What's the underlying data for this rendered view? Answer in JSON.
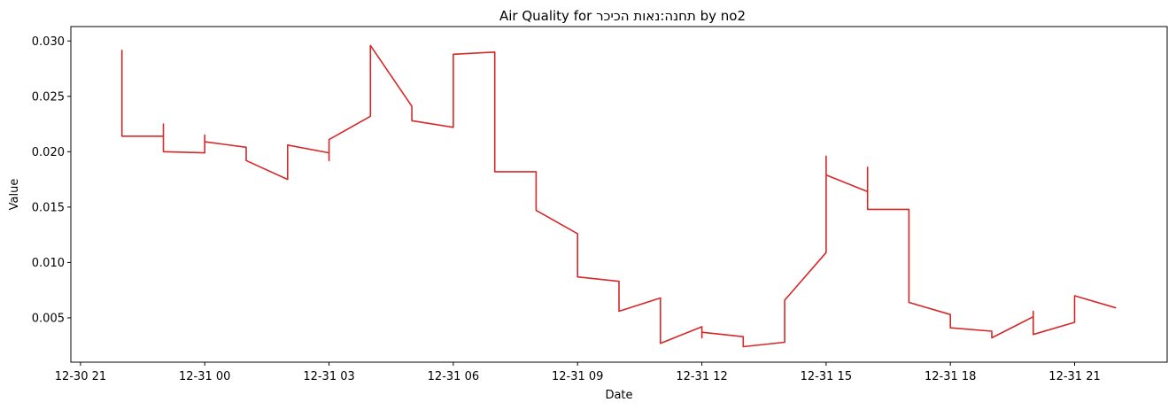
{
  "chart_data": {
    "type": "line",
    "title": "Air Quality for תחנה:נאות הכיכר by no2",
    "xlabel": "Date",
    "ylabel": "Value",
    "xlim": [
      "2023-12-30 20:46",
      "2023-12-31 23:14"
    ],
    "ylim": [
      0.001,
      0.0313
    ],
    "x_ticks": [
      "2023-12-30 21:00",
      "2023-12-31 00:00",
      "2023-12-31 03:00",
      "2023-12-31 06:00",
      "2023-12-31 09:00",
      "2023-12-31 12:00",
      "2023-12-31 15:00",
      "2023-12-31 18:00",
      "2023-12-31 21:00"
    ],
    "x_tick_labels": [
      "12-30 21",
      "12-31 00",
      "12-31 03",
      "12-31 06",
      "12-31 09",
      "12-31 12",
      "12-31 15",
      "12-31 18",
      "12-31 21"
    ],
    "y_ticks": [
      0.005,
      0.01,
      0.015,
      0.02,
      0.025,
      0.03
    ],
    "y_tick_labels": [
      "0.005",
      "0.010",
      "0.015",
      "0.020",
      "0.025",
      "0.030"
    ],
    "grid": false,
    "color": "#d62728",
    "series": [
      {
        "x": [
          "2023-12-30 22:00",
          "2023-12-30 22:00",
          "2023-12-30 23:00",
          "2023-12-30 23:00",
          "2023-12-30 23:00",
          "2023-12-31 00:00",
          "2023-12-31 00:00",
          "2023-12-31 00:00",
          "2023-12-31 01:00",
          "2023-12-31 01:00",
          "2023-12-31 02:00",
          "2023-12-31 02:00",
          "2023-12-31 03:00",
          "2023-12-31 03:00",
          "2023-12-31 03:00",
          "2023-12-31 04:00",
          "2023-12-31 04:00",
          "2023-12-31 05:00",
          "2023-12-31 05:00",
          "2023-12-31 05:00",
          "2023-12-31 06:00",
          "2023-12-31 06:00",
          "2023-12-31 07:00",
          "2023-12-31 07:00",
          "2023-12-31 08:00",
          "2023-12-31 08:00",
          "2023-12-31 09:00",
          "2023-12-31 09:00",
          "2023-12-31 10:00",
          "2023-12-31 10:00",
          "2023-12-31 11:00",
          "2023-12-31 11:00",
          "2023-12-31 12:00",
          "2023-12-31 12:00",
          "2023-12-31 12:00",
          "2023-12-31 13:00",
          "2023-12-31 13:00",
          "2023-12-31 14:00",
          "2023-12-31 14:00",
          "2023-12-31 15:00",
          "2023-12-31 15:00",
          "2023-12-31 15:00",
          "2023-12-31 16:00",
          "2023-12-31 16:00",
          "2023-12-31 16:00",
          "2023-12-31 17:00",
          "2023-12-31 17:00",
          "2023-12-31 18:00",
          "2023-12-31 18:00",
          "2023-12-31 19:00",
          "2023-12-31 19:00",
          "2023-12-31 20:00",
          "2023-12-31 20:00",
          "2023-12-31 20:00",
          "2023-12-31 21:00",
          "2023-12-31 21:00",
          "2023-12-31 22:00"
        ],
        "y": [
          0.0292,
          0.0214,
          0.0214,
          0.0225,
          0.02,
          0.0199,
          0.0215,
          0.0209,
          0.0204,
          0.0192,
          0.0175,
          0.0206,
          0.0199,
          0.0192,
          0.0211,
          0.0232,
          0.0296,
          0.0241,
          0.0228,
          0.0228,
          0.0222,
          0.0288,
          0.029,
          0.0182,
          0.0182,
          0.0147,
          0.0126,
          0.0087,
          0.0083,
          0.0056,
          0.0068,
          0.0027,
          0.0042,
          0.0032,
          0.0037,
          0.0033,
          0.0024,
          0.0028,
          0.0066,
          0.0109,
          0.0196,
          0.0179,
          0.0164,
          0.0186,
          0.0148,
          0.0148,
          0.0064,
          0.0053,
          0.0041,
          0.0038,
          0.0032,
          0.0051,
          0.0056,
          0.0035,
          0.0046,
          0.007,
          0.0059
        ]
      }
    ]
  }
}
